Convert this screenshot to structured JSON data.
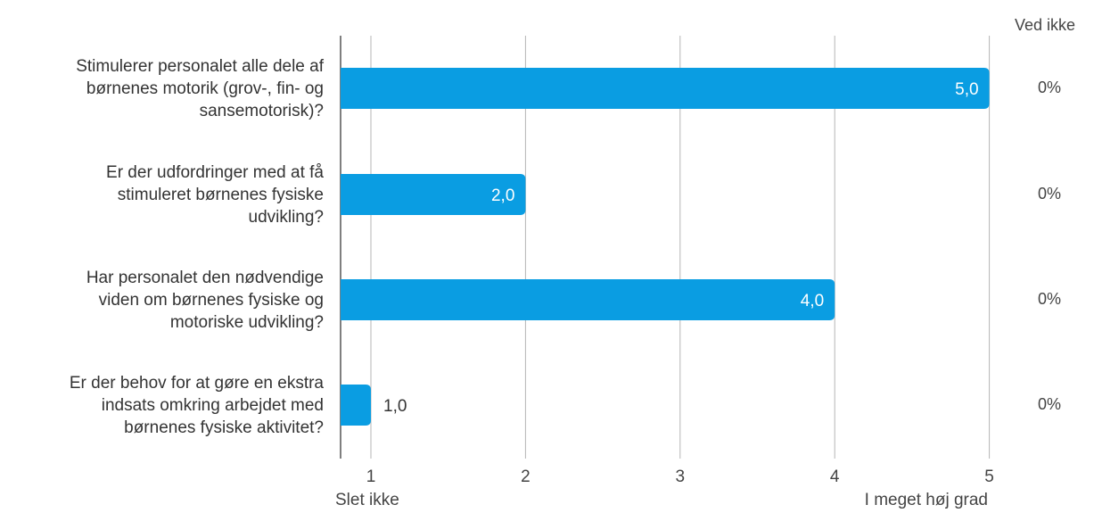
{
  "chart_data": {
    "type": "bar",
    "orientation": "horizontal",
    "categories": [
      "Stimulerer personalet alle dele af børnenes motorik (grov-, fin- og sansemotorisk)?",
      "Er der udfordringer med at få stimuleret børnenes fysiske udvikling?",
      "Har personalet den nødvendige viden om børnenes fysiske og motoriske udvikling?",
      "Er der behov for at gøre en ekstra indsats omkring arbejdet med børnenes fysiske aktivitet?"
    ],
    "category_lines": [
      [
        "Stimulerer personalet alle dele af",
        "børnenes motorik (grov-, fin- og",
        "sansemotorisk)?"
      ],
      [
        "Er der udfordringer med at få",
        "stimuleret børnenes fysiske",
        "udvikling?"
      ],
      [
        "Har personalet den nødvendige",
        "viden om børnenes fysiske og",
        "motoriske udvikling?"
      ],
      [
        "Er der behov for at gøre en ekstra",
        "indsats omkring arbejdet med",
        "børnenes fysiske aktivitet?"
      ]
    ],
    "values": [
      5.0,
      2.0,
      4.0,
      1.0
    ],
    "value_labels": [
      "5,0",
      "2,0",
      "4,0",
      "1,0"
    ],
    "xlim": [
      0.8,
      5
    ],
    "xticks": [
      "1",
      "2",
      "3",
      "4",
      "5"
    ],
    "x_min_label": "Slet ikke",
    "x_max_label": "I meget høj grad",
    "grid": true,
    "bar_color": "#0a9de2",
    "side_column": {
      "header": "Ved ikke",
      "values": [
        "0%",
        "0%",
        "0%",
        "0%"
      ]
    }
  }
}
